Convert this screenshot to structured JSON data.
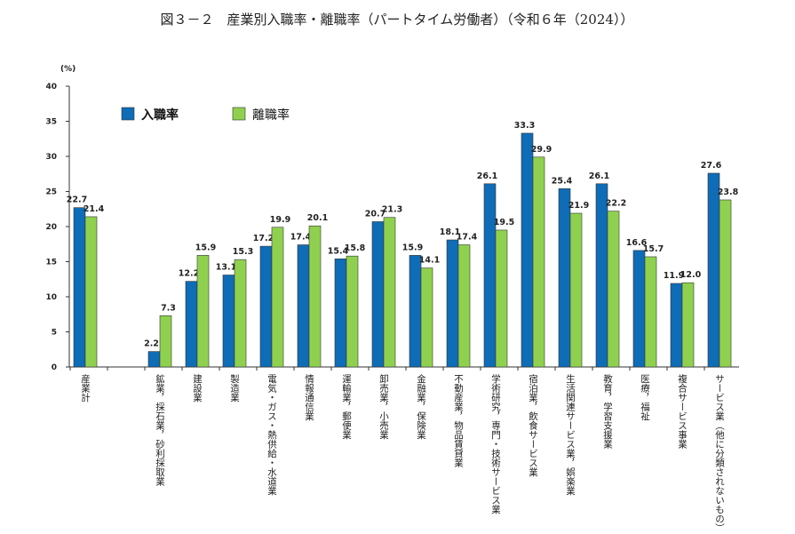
{
  "chart_data": {
    "type": "bar",
    "title": "図３－２　産業別入職率・離職率（パートタイム労働者）（令和６年（2024））",
    "ylabel": "(%)",
    "ylim": [
      0,
      40
    ],
    "yticks": [
      "0",
      "5",
      "10",
      "15",
      "20",
      "25",
      "30",
      "35",
      "40"
    ],
    "grid": false,
    "legend_position": "top-left",
    "categories": [
      "産業計",
      "",
      "鉱業，採石業，砂利採取業",
      "建設業",
      "製造業",
      "電気・ガス・熱供給・水道業",
      "情報通信業",
      "運輸業，郵便業",
      "卸売業，小売業",
      "金融業，保険業",
      "不動産業，物品賃貸業",
      "学術研究，専門・技術サービス業",
      "宿泊業，飲食サービス業",
      "生活関連サービス業，娯楽業",
      "教育，学習支援業",
      "医療，福祉",
      "複合サービス事業",
      "サービス業（他に分類されないもの）"
    ],
    "series": [
      {
        "name": "入職率",
        "color": "#0f6cb6",
        "values": [
          22.7,
          null,
          2.2,
          12.2,
          13.1,
          17.2,
          17.4,
          15.4,
          20.7,
          15.9,
          18.1,
          26.1,
          33.3,
          25.4,
          26.1,
          16.6,
          11.9,
          27.6
        ],
        "labels": [
          "22.7",
          "",
          "2.2",
          "12.2",
          "13.1",
          "17.2",
          "17.4",
          "15.4",
          "20.7",
          "15.9",
          "18.1",
          "26.1",
          "33.3",
          "25.4",
          "26.1",
          "16.6",
          "11.9",
          "27.6"
        ]
      },
      {
        "name": "離職率",
        "color": "#8fd14f",
        "values": [
          21.4,
          null,
          7.3,
          15.9,
          15.3,
          19.9,
          20.1,
          15.8,
          21.3,
          14.1,
          17.4,
          19.5,
          29.9,
          21.9,
          22.2,
          15.7,
          12.0,
          23.8
        ],
        "labels": [
          "21.4",
          "",
          "7.3",
          "15.9",
          "15.3",
          "19.9",
          "20.1",
          "15.8",
          "21.3",
          "14.1",
          "17.4",
          "19.5",
          "29.9",
          "21.9",
          "22.2",
          "15.7",
          "12.0",
          "23.8"
        ]
      }
    ]
  }
}
